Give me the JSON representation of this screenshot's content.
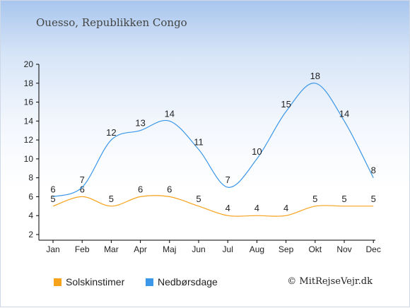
{
  "header": {
    "title": "Ouesso, Republikken Congo"
  },
  "colors": {
    "sun": "#f6a21a",
    "rain": "#3b97e8",
    "axis": "#000000",
    "label": "#222222"
  },
  "legend": {
    "sun_label": "Solskinstimer",
    "rain_label": "Nedbørsdage"
  },
  "footer": {
    "copyright": "© MitRejseVejr.dk"
  },
  "chart_data": {
    "type": "line",
    "categories": [
      "Jan",
      "Feb",
      "Mar",
      "Apr",
      "Maj",
      "Jun",
      "Jul",
      "Aug",
      "Sep",
      "Okt",
      "Nov",
      "Dec"
    ],
    "series": [
      {
        "name": "Solskinstimer",
        "values": [
          5,
          6,
          5,
          6,
          6,
          5,
          4,
          4,
          4,
          5,
          5,
          5
        ]
      },
      {
        "name": "Nedbørsdage",
        "values": [
          6,
          7,
          12,
          13,
          14,
          11,
          7,
          10,
          15,
          18,
          14,
          8
        ]
      }
    ],
    "yticks": [
      "2",
      "4",
      "6",
      "8",
      "10",
      "12",
      "14",
      "16",
      "18",
      "20"
    ],
    "ylim": [
      2,
      20
    ],
    "grid": false,
    "legend_position": "bottom"
  }
}
